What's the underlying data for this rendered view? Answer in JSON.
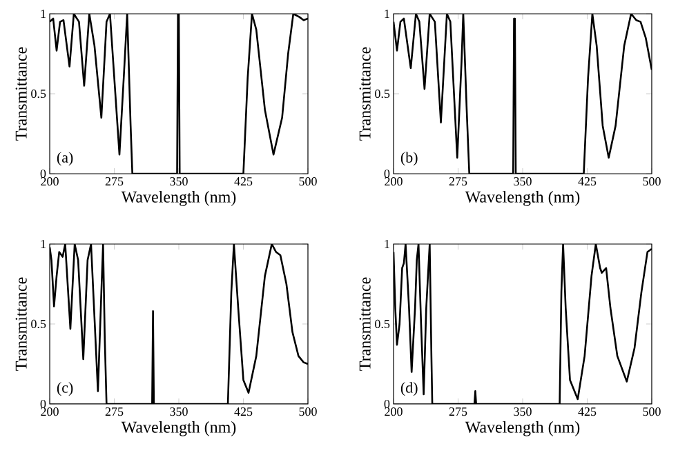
{
  "chart_data": [
    {
      "type": "line",
      "xlabel": "Wavelength (nm)",
      "ylabel": "Transmittance",
      "annotations": [
        "(a)"
      ],
      "color": "#000000",
      "xlim": [
        200,
        500
      ],
      "ylim": [
        0,
        1
      ],
      "xticks": [
        200,
        275,
        350,
        425,
        500
      ],
      "yticks": [
        0,
        0.5,
        1
      ],
      "x": [
        200,
        204,
        208,
        212,
        216,
        223,
        228,
        234,
        240,
        246,
        252,
        260,
        266,
        270,
        281,
        286,
        290,
        294,
        296,
        348,
        349,
        350,
        351,
        352,
        425,
        430,
        435,
        440,
        450,
        460,
        470,
        477,
        483,
        490,
        495,
        500
      ],
      "values": [
        0.95,
        0.97,
        0.77,
        0.95,
        0.96,
        0.67,
        1,
        0.95,
        0.55,
        1,
        0.8,
        0.35,
        0.95,
        1,
        0.12,
        0.6,
        1,
        0.3,
        0,
        0,
        1,
        1,
        0,
        0,
        0,
        0.6,
        1,
        0.9,
        0.4,
        0.12,
        0.35,
        0.75,
        1,
        0.98,
        0.96,
        0.97
      ]
    },
    {
      "type": "line",
      "xlabel": "Wavelength (nm)",
      "ylabel": "Transmittance",
      "annotations": [
        "(b)"
      ],
      "color": "#000000",
      "xlim": [
        200,
        500
      ],
      "ylim": [
        0,
        1
      ],
      "xticks": [
        200,
        275,
        350,
        425,
        500
      ],
      "yticks": [
        0,
        0.5,
        1
      ],
      "x": [
        200,
        204,
        208,
        212,
        220,
        226,
        230,
        236,
        242,
        248,
        255,
        262,
        266,
        274,
        279,
        281,
        285,
        288,
        339,
        340,
        341,
        342,
        421,
        426,
        431,
        436,
        443,
        450,
        458,
        468,
        476,
        482,
        487,
        493,
        500
      ],
      "values": [
        0.95,
        0.77,
        0.95,
        0.97,
        0.66,
        1,
        0.95,
        0.53,
        1,
        0.95,
        0.32,
        1,
        0.95,
        0.1,
        0.7,
        1,
        0.4,
        0,
        0,
        0.97,
        0.97,
        0,
        0,
        0.6,
        1,
        0.8,
        0.3,
        0.1,
        0.3,
        0.8,
        1,
        0.96,
        0.95,
        0.85,
        0.65
      ]
    },
    {
      "type": "line",
      "xlabel": "Wavelength (nm)",
      "ylabel": "Transmittance",
      "annotations": [
        "(c)"
      ],
      "color": "#000000",
      "xlim": [
        200,
        500
      ],
      "ylim": [
        0,
        1
      ],
      "xticks": [
        200,
        275,
        350,
        425,
        500
      ],
      "yticks": [
        0,
        0.5,
        1
      ],
      "x": [
        200,
        202,
        205,
        208,
        211,
        215,
        218,
        224,
        229,
        233,
        239,
        244,
        248,
        256,
        260,
        262,
        264,
        266,
        319,
        320,
        321,
        407,
        411,
        414,
        419,
        425,
        431,
        440,
        450,
        458,
        463,
        468,
        475,
        482,
        489,
        495,
        500
      ],
      "values": [
        0.98,
        0.9,
        0.61,
        0.8,
        0.95,
        0.92,
        1,
        0.47,
        1,
        0.9,
        0.28,
        0.9,
        1,
        0.08,
        0.7,
        1,
        0.4,
        0,
        0,
        0.58,
        0,
        0,
        0.7,
        1,
        0.6,
        0.15,
        0.07,
        0.3,
        0.8,
        1,
        0.95,
        0.93,
        0.75,
        0.45,
        0.3,
        0.26,
        0.25
      ]
    },
    {
      "type": "line",
      "xlabel": "Wavelength (nm)",
      "ylabel": "Transmittance",
      "annotations": [
        "(d)"
      ],
      "color": "#000000",
      "xlim": [
        200,
        500
      ],
      "ylim": [
        0,
        1
      ],
      "xticks": [
        200,
        275,
        350,
        425,
        500
      ],
      "yticks": [
        0,
        0.5,
        1
      ],
      "x": [
        200,
        202,
        204,
        207,
        210,
        212,
        214,
        218,
        221,
        225,
        227,
        229,
        232,
        235,
        238,
        242,
        244,
        245,
        294,
        295,
        296,
        393,
        395,
        397,
        400,
        405,
        414,
        422,
        430,
        435,
        440,
        442,
        447,
        452,
        460,
        471,
        480,
        488,
        495,
        500
      ],
      "values": [
        0.95,
        0.6,
        0.37,
        0.5,
        0.85,
        0.88,
        1,
        0.6,
        0.2,
        0.6,
        0.9,
        1,
        0.5,
        0.06,
        0.6,
        1,
        0.3,
        0,
        0,
        0.08,
        0,
        0,
        0.7,
        1,
        0.6,
        0.15,
        0.03,
        0.3,
        0.8,
        1,
        0.85,
        0.82,
        0.85,
        0.6,
        0.3,
        0.14,
        0.35,
        0.7,
        0.95,
        0.97
      ]
    }
  ]
}
